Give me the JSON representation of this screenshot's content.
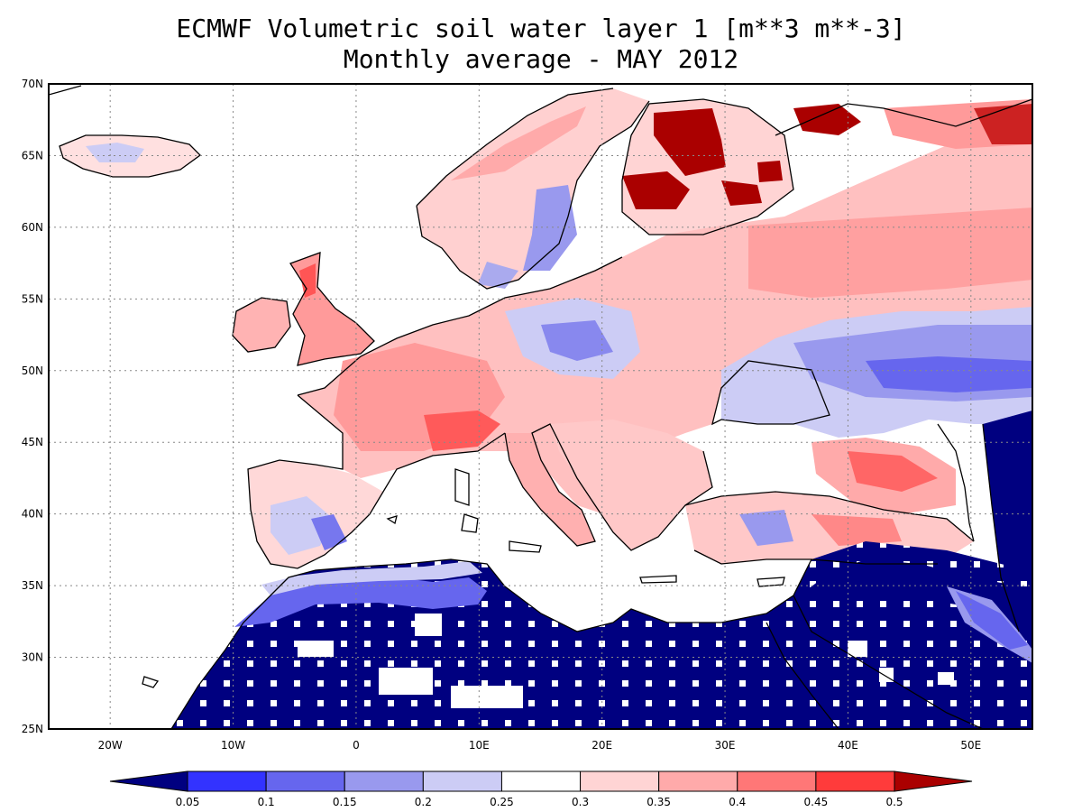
{
  "title": {
    "line1": "ECMWF Volumetric soil water layer 1 [m**3 m**-3]",
    "line2": "Monthly average - MAY 2012"
  },
  "map": {
    "lon_range": [
      -25,
      55
    ],
    "lat_range": [
      25,
      70
    ],
    "lon_ticks": [
      {
        "value": -20,
        "label": "20W"
      },
      {
        "value": -10,
        "label": "10W"
      },
      {
        "value": 0,
        "label": "0"
      },
      {
        "value": 10,
        "label": "10E"
      },
      {
        "value": 20,
        "label": "20E"
      },
      {
        "value": 30,
        "label": "30E"
      },
      {
        "value": 40,
        "label": "40E"
      },
      {
        "value": 50,
        "label": "50E"
      }
    ],
    "lat_ticks": [
      {
        "value": 25,
        "label": "25N"
      },
      {
        "value": 30,
        "label": "30N"
      },
      {
        "value": 35,
        "label": "35N"
      },
      {
        "value": 40,
        "label": "40N"
      },
      {
        "value": 45,
        "label": "45N"
      },
      {
        "value": 50,
        "label": "50N"
      },
      {
        "value": 55,
        "label": "55N"
      },
      {
        "value": 60,
        "label": "60N"
      },
      {
        "value": 65,
        "label": "65N"
      },
      {
        "value": 70,
        "label": "70N"
      }
    ],
    "grid": true,
    "colors": {
      "lt_0.05": "#000080",
      "0.05_0.1": "#3333ff",
      "0.1_0.15": "#6666ee",
      "0.15_0.2": "#9999ee",
      "0.2_0.25": "#ccccf5",
      "0.25_0.3": "#ffffff",
      "0.3_0.35": "#ffd4d4",
      "0.35_0.4": "#ffaaaa",
      "0.4_0.45": "#ff7777",
      "0.45_0.5": "#ff3b3b",
      "gt_0.5": "#aa0000"
    }
  },
  "colorbar": {
    "labels": [
      "0.05",
      "0.1",
      "0.15",
      "0.2",
      "0.25",
      "0.3",
      "0.35",
      "0.4",
      "0.45",
      "0.5"
    ],
    "colors": [
      "#000080",
      "#3333ff",
      "#6666ee",
      "#9999ee",
      "#ccccf5",
      "#ffffff",
      "#ffd4d4",
      "#ffaaaa",
      "#ff7777",
      "#ff3b3b",
      "#aa0000"
    ]
  }
}
